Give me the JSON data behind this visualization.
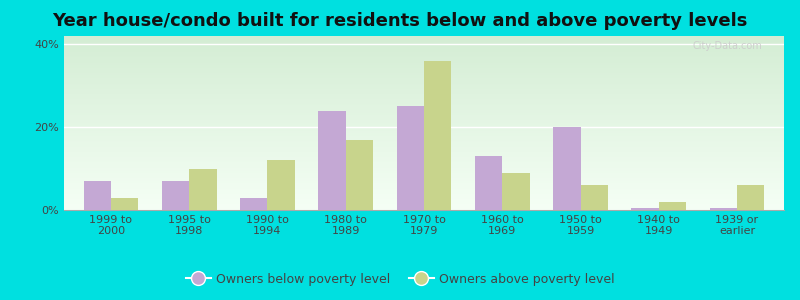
{
  "title": "Year house/condo built for residents below and above poverty levels",
  "categories": [
    "1999 to\n2000",
    "1995 to\n1998",
    "1990 to\n1994",
    "1980 to\n1989",
    "1970 to\n1979",
    "1960 to\n1969",
    "1950 to\n1959",
    "1940 to\n1949",
    "1939 or\nearlier"
  ],
  "below_poverty": [
    7.0,
    7.0,
    3.0,
    24.0,
    25.0,
    13.0,
    20.0,
    0.5,
    0.5
  ],
  "above_poverty": [
    3.0,
    10.0,
    12.0,
    17.0,
    36.0,
    9.0,
    6.0,
    2.0,
    6.0
  ],
  "below_color": "#c4a8d4",
  "above_color": "#c8d48c",
  "bg_top_color": "#d4edd4",
  "bg_bottom_color": "#f5fff5",
  "outer_bg": "#00e0e0",
  "ylim": [
    0,
    42
  ],
  "yticks": [
    0,
    20,
    40
  ],
  "ytick_labels": [
    "0%",
    "20%",
    "40%"
  ],
  "bar_width": 0.35,
  "legend_below": "Owners below poverty level",
  "legend_above": "Owners above poverty level",
  "title_fontsize": 13,
  "tick_fontsize": 8,
  "legend_fontsize": 9,
  "watermark": "City-Data.com"
}
